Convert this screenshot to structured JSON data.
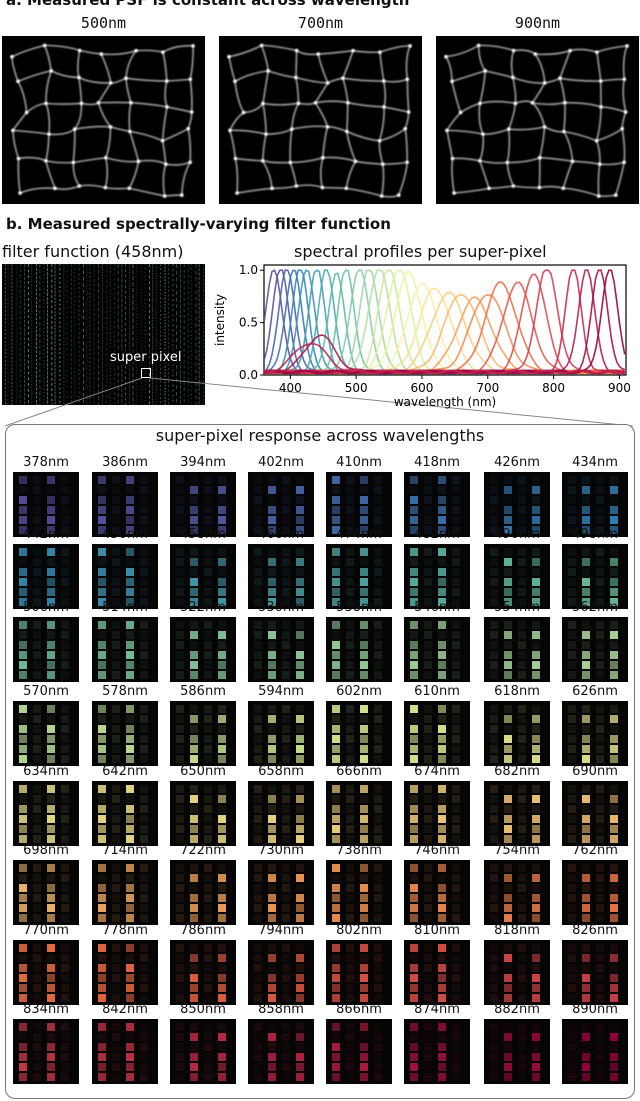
{
  "section_a": {
    "title": "a. Measured PSF is constant across wavelength",
    "panels": [
      {
        "label": "500nm"
      },
      {
        "label": "700nm"
      },
      {
        "label": "900nm"
      }
    ]
  },
  "section_b": {
    "title": "b. Measured spectrally-varying filter function",
    "filter_title": "filter function (458nm)",
    "super_pixel_label": "super pixel",
    "profiles_title": "spectral profiles per super-pixel",
    "grid_title": "super-pixel response across wavelengths",
    "wavelength_labels": [
      "378nm",
      "386nm",
      "394nm",
      "402nm",
      "410nm",
      "418nm",
      "426nm",
      "434nm",
      "442nm",
      "450nm",
      "458nm",
      "466nm",
      "474nm",
      "482nm",
      "490nm",
      "498nm",
      "506nm",
      "514nm",
      "522nm",
      "530nm",
      "538nm",
      "546nm",
      "554nm",
      "562nm",
      "570nm",
      "578nm",
      "586nm",
      "594nm",
      "602nm",
      "610nm",
      "618nm",
      "626nm",
      "634nm",
      "642nm",
      "650nm",
      "658nm",
      "666nm",
      "674nm",
      "682nm",
      "690nm",
      "698nm",
      "714nm",
      "722nm",
      "730nm",
      "738nm",
      "746nm",
      "754nm",
      "762nm",
      "770nm",
      "778nm",
      "786nm",
      "794nm",
      "802nm",
      "810nm",
      "818nm",
      "826nm",
      "834nm",
      "842nm",
      "850nm",
      "858nm",
      "866nm",
      "874nm",
      "882nm",
      "890nm"
    ]
  },
  "chart_data": {
    "type": "line",
    "title": "spectral profiles per super-pixel",
    "xlabel": "wavelength (nm)",
    "ylabel": "intensity",
    "xlim": [
      360,
      910
    ],
    "ylim": [
      0,
      1.05
    ],
    "xticks": [
      "400",
      "500",
      "600",
      "700",
      "800",
      "900"
    ],
    "yticks": [
      "0.0",
      "0.5",
      "1.0"
    ],
    "grid": false,
    "series": [
      {
        "color": "#5e4fa2",
        "peak": 375,
        "amp": 1.0,
        "width": 12
      },
      {
        "color": "#5b53a4",
        "peak": 385,
        "amp": 1.0,
        "width": 12
      },
      {
        "color": "#4a63b0",
        "peak": 395,
        "amp": 1.0,
        "width": 12
      },
      {
        "color": "#3f74b5",
        "peak": 405,
        "amp": 1.0,
        "width": 12
      },
      {
        "color": "#3288bd",
        "peak": 415,
        "amp": 1.0,
        "width": 12
      },
      {
        "color": "#3a94bb",
        "peak": 425,
        "amp": 1.0,
        "width": 12
      },
      {
        "color": "#429fb8",
        "peak": 440,
        "amp": 1.0,
        "width": 12
      },
      {
        "color": "#4ea8b2",
        "peak": 455,
        "amp": 1.0,
        "width": 12
      },
      {
        "color": "#5eb7a8",
        "peak": 470,
        "amp": 0.95,
        "width": 12
      },
      {
        "color": "#66c2a5",
        "peak": 485,
        "amp": 1.0,
        "width": 12
      },
      {
        "color": "#82cda5",
        "peak": 505,
        "amp": 1.0,
        "width": 14
      },
      {
        "color": "#9dd7a4",
        "peak": 520,
        "amp": 1.0,
        "width": 14
      },
      {
        "color": "#b5e0a3",
        "peak": 535,
        "amp": 1.0,
        "width": 16
      },
      {
        "color": "#cbe99d",
        "peak": 550,
        "amp": 1.0,
        "width": 16
      },
      {
        "color": "#e0f19a",
        "peak": 565,
        "amp": 1.0,
        "width": 18
      },
      {
        "color": "#f0f4a0",
        "peak": 580,
        "amp": 0.95,
        "width": 20
      },
      {
        "color": "#fbf0a6",
        "peak": 600,
        "amp": 0.85,
        "width": 22
      },
      {
        "color": "#fee08b",
        "peak": 620,
        "amp": 0.8,
        "width": 24
      },
      {
        "color": "#fdcd7a",
        "peak": 640,
        "amp": 0.75,
        "width": 26
      },
      {
        "color": "#fdb768",
        "peak": 660,
        "amp": 0.75,
        "width": 26
      },
      {
        "color": "#fb9e58",
        "peak": 680,
        "amp": 0.7,
        "width": 26
      },
      {
        "color": "#f78851",
        "peak": 700,
        "amp": 0.75,
        "width": 26
      },
      {
        "color": "#f46d43",
        "peak": 720,
        "amp": 0.85,
        "width": 24
      },
      {
        "color": "#e9574a",
        "peak": 745,
        "amp": 0.85,
        "width": 22
      },
      {
        "color": "#de4b4b",
        "peak": 770,
        "amp": 0.95,
        "width": 18
      },
      {
        "color": "#d53e4f",
        "peak": 790,
        "amp": 1.0,
        "width": 16
      },
      {
        "color": "#c62b4f",
        "peak": 830,
        "amp": 1.0,
        "width": 12
      },
      {
        "color": "#b51d4e",
        "peak": 850,
        "amp": 1.0,
        "width": 12
      },
      {
        "color": "#a50f4a",
        "peak": 870,
        "amp": 1.0,
        "width": 12
      },
      {
        "color": "#9e0142",
        "peak": 885,
        "amp": 1.0,
        "width": 12
      },
      {
        "color": "#b0154a",
        "peak": 445,
        "amp": 0.35,
        "width": 22
      },
      {
        "color": "#c0264f",
        "peak": 430,
        "amp": 0.28,
        "width": 24
      }
    ]
  }
}
